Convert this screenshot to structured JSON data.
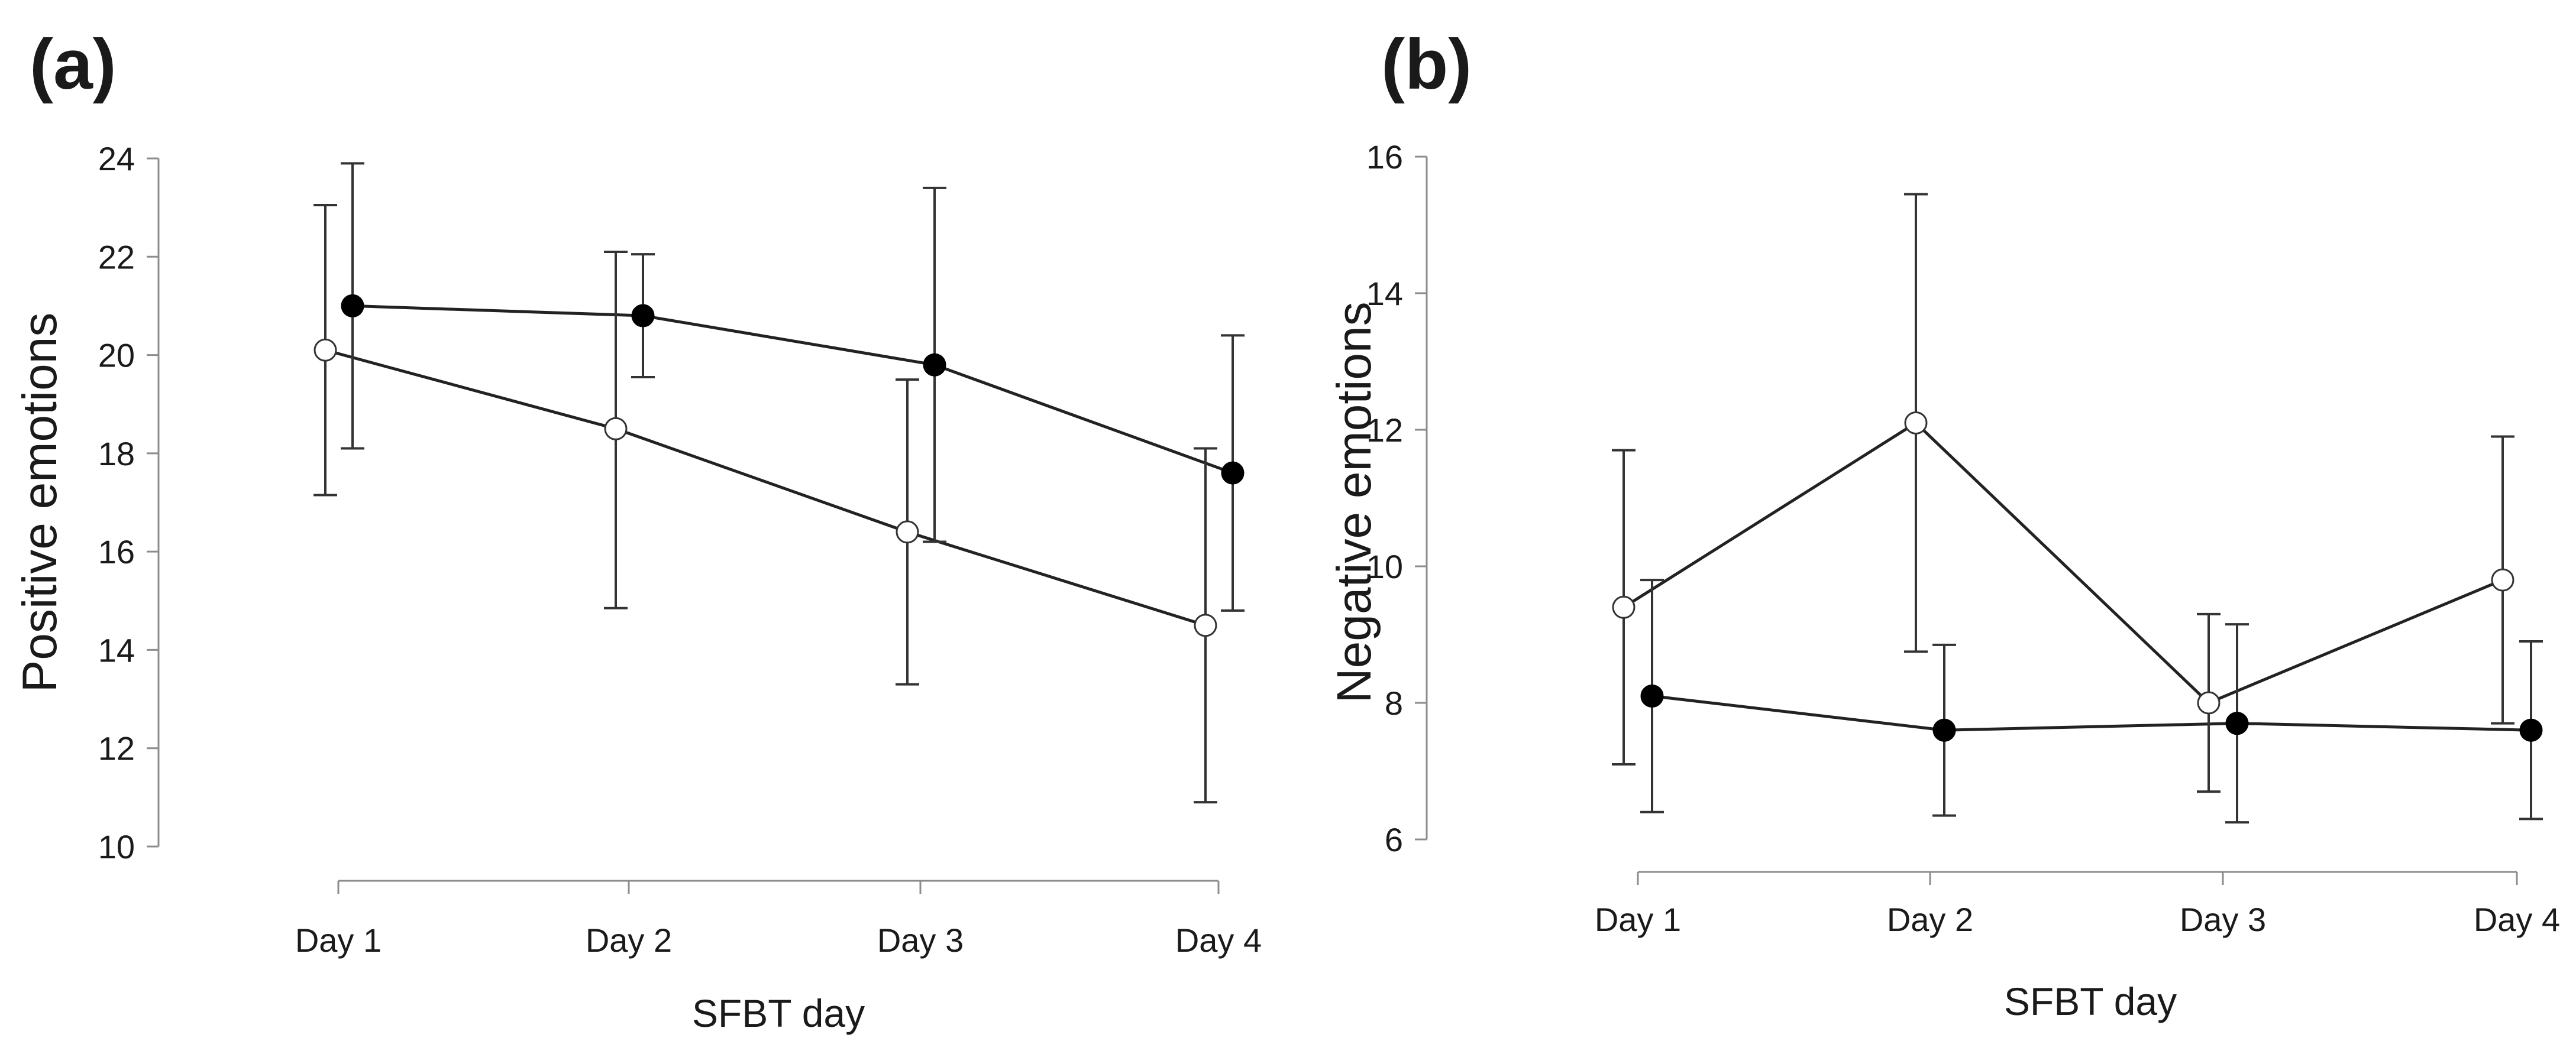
{
  "chart_data": [
    {
      "type": "line",
      "panel_label": "(a)",
      "xlabel": "SFBT day",
      "ylabel": "Positive emotions",
      "categories": [
        "Day 1",
        "Day 2",
        "Day 3",
        "Day 4"
      ],
      "ylim": [
        10,
        24
      ],
      "yticks": [
        10,
        12,
        14,
        16,
        18,
        20,
        22,
        24
      ],
      "series": [
        {
          "name": "filled",
          "marker": "filled",
          "values": [
            21.0,
            20.8,
            19.8,
            17.6
          ],
          "error_low": [
            18.1,
            19.55,
            16.2,
            14.8
          ],
          "error_high": [
            23.9,
            22.05,
            23.4,
            20.4
          ]
        },
        {
          "name": "open",
          "marker": "open",
          "values": [
            20.1,
            18.5,
            16.4,
            14.5
          ],
          "error_low": [
            17.15,
            14.85,
            13.3,
            10.9
          ],
          "error_high": [
            23.05,
            22.1,
            19.5,
            18.1
          ]
        }
      ]
    },
    {
      "type": "line",
      "panel_label": "(b)",
      "xlabel": "SFBT day",
      "ylabel": "Negative emotions",
      "categories": [
        "Day 1",
        "Day 2",
        "Day 3",
        "Day 4"
      ],
      "ylim": [
        6,
        16
      ],
      "yticks": [
        6,
        8,
        10,
        12,
        14,
        16
      ],
      "series": [
        {
          "name": "filled",
          "marker": "filled",
          "values": [
            8.1,
            7.6,
            7.7,
            7.6
          ],
          "error_low": [
            6.4,
            6.35,
            6.25,
            6.3
          ],
          "error_high": [
            9.8,
            8.85,
            9.15,
            8.9
          ]
        },
        {
          "name": "open",
          "marker": "open",
          "values": [
            9.4,
            12.1,
            8.0,
            9.8
          ],
          "error_low": [
            7.1,
            8.75,
            6.7,
            7.7
          ],
          "error_high": [
            11.7,
            15.45,
            9.3,
            11.9
          ]
        }
      ]
    }
  ]
}
